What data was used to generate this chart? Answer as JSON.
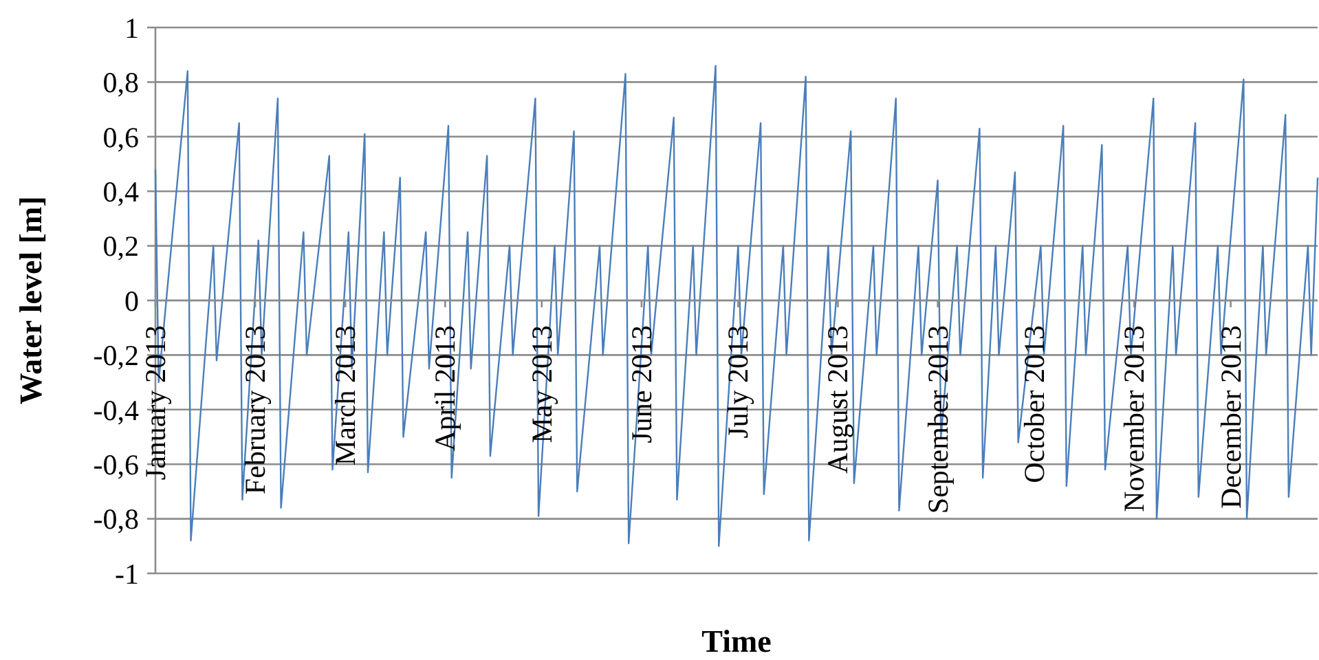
{
  "chart_data": {
    "type": "line",
    "xlabel": "Time",
    "ylabel": "Water level [m]",
    "grid": "y",
    "marker": "none",
    "line_style": "solid",
    "xlim": [
      "2013-01-01",
      "2013-12-28"
    ],
    "xticks": [
      {
        "value": "2013-01-01",
        "label": "January 2013"
      },
      {
        "value": "2013-02-01",
        "label": "February 2013"
      },
      {
        "value": "2013-03-01",
        "label": "March 2013"
      },
      {
        "value": "2013-04-01",
        "label": "April 2013"
      },
      {
        "value": "2013-05-01",
        "label": "May 2013"
      },
      {
        "value": "2013-06-01",
        "label": "June 2013"
      },
      {
        "value": "2013-07-01",
        "label": "July 2013"
      },
      {
        "value": "2013-08-01",
        "label": "August 2013"
      },
      {
        "value": "2013-09-01",
        "label": "September 2013"
      },
      {
        "value": "2013-10-01",
        "label": "October 2013"
      },
      {
        "value": "2013-11-01",
        "label": "November 2013"
      },
      {
        "value": "2013-12-01",
        "label": "December 2013"
      }
    ],
    "ylim": [
      -1,
      1
    ],
    "yticks": [
      -1,
      {
        "value": -0.8,
        "label": "-0,8"
      },
      {
        "value": -0.6,
        "label": "-0,6"
      },
      {
        "value": -0.4,
        "label": "-0,4"
      },
      {
        "value": -0.2,
        "label": "-0,2"
      },
      0,
      {
        "value": 0.2,
        "label": "0,2"
      },
      {
        "value": 0.4,
        "label": "0,4"
      },
      {
        "value": 0.6,
        "label": "0,6"
      },
      {
        "value": 0.8,
        "label": "0,8"
      },
      1
    ],
    "x": [
      "2013-01-01",
      "2013-01-02",
      "2013-01-11",
      "2013-01-12",
      "2013-01-19",
      "2013-01-20",
      "2013-01-27",
      "2013-01-28",
      "2013-02-02",
      "2013-02-03",
      "2013-02-08",
      "2013-02-09",
      "2013-02-16",
      "2013-02-17",
      "2013-02-24",
      "2013-02-25",
      "2013-03-02",
      "2013-03-03",
      "2013-03-07",
      "2013-03-08",
      "2013-03-13",
      "2013-03-14",
      "2013-03-18",
      "2013-03-19",
      "2013-03-26",
      "2013-03-27",
      "2013-04-02",
      "2013-04-03",
      "2013-04-08",
      "2013-04-09",
      "2013-04-14",
      "2013-04-15",
      "2013-04-21",
      "2013-04-22",
      "2013-04-29",
      "2013-04-30",
      "2013-05-05",
      "2013-05-06",
      "2013-05-11",
      "2013-05-12",
      "2013-05-19",
      "2013-05-20",
      "2013-05-27",
      "2013-05-28",
      "2013-06-03",
      "2013-06-04",
      "2013-06-11",
      "2013-06-12",
      "2013-06-17",
      "2013-06-18",
      "2013-06-24",
      "2013-06-25",
      "2013-07-01",
      "2013-07-02",
      "2013-07-08",
      "2013-07-09",
      "2013-07-15",
      "2013-07-16",
      "2013-07-22",
      "2013-07-23",
      "2013-07-29",
      "2013-07-30",
      "2013-08-05",
      "2013-08-06",
      "2013-08-12",
      "2013-08-13",
      "2013-08-19",
      "2013-08-20",
      "2013-08-26",
      "2013-08-27",
      "2013-09-01",
      "2013-09-02",
      "2013-09-07",
      "2013-09-08",
      "2013-09-14",
      "2013-09-15",
      "2013-09-19",
      "2013-09-20",
      "2013-09-25",
      "2013-09-26",
      "2013-10-03",
      "2013-10-04",
      "2013-10-10",
      "2013-10-11",
      "2013-10-16",
      "2013-10-17",
      "2013-10-22",
      "2013-10-23",
      "2013-10-30",
      "2013-10-31",
      "2013-11-07",
      "2013-11-08",
      "2013-11-13",
      "2013-11-14",
      "2013-11-20",
      "2013-11-21",
      "2013-11-27",
      "2013-11-28",
      "2013-12-05",
      "2013-12-06",
      "2013-12-11",
      "2013-12-12",
      "2013-12-18",
      "2013-12-19",
      "2013-12-25",
      "2013-12-26",
      "2013-12-28"
    ],
    "series": [
      {
        "color": "#4a7ebb",
        "values": [
          0.48,
          -0.3,
          0.84,
          -0.88,
          0.2,
          -0.22,
          0.65,
          -0.73,
          0.22,
          -0.2,
          0.74,
          -0.76,
          0.25,
          -0.2,
          0.53,
          -0.62,
          0.25,
          -0.25,
          0.61,
          -0.63,
          0.25,
          -0.2,
          0.45,
          -0.5,
          0.25,
          -0.25,
          0.64,
          -0.65,
          0.25,
          -0.25,
          0.53,
          -0.57,
          0.2,
          -0.2,
          0.74,
          -0.79,
          0.2,
          -0.2,
          0.62,
          -0.7,
          0.2,
          -0.2,
          0.83,
          -0.89,
          0.2,
          -0.2,
          0.67,
          -0.73,
          0.2,
          -0.2,
          0.86,
          -0.9,
          0.2,
          -0.2,
          0.65,
          -0.71,
          0.2,
          -0.2,
          0.82,
          -0.88,
          0.2,
          -0.2,
          0.62,
          -0.67,
          0.2,
          -0.2,
          0.74,
          -0.77,
          0.2,
          -0.2,
          0.44,
          -0.5,
          0.2,
          -0.2,
          0.63,
          -0.65,
          0.2,
          -0.2,
          0.47,
          -0.52,
          0.2,
          -0.2,
          0.64,
          -0.68,
          0.2,
          -0.2,
          0.57,
          -0.62,
          0.2,
          -0.2,
          0.74,
          -0.8,
          0.2,
          -0.2,
          0.65,
          -0.72,
          0.2,
          -0.2,
          0.81,
          -0.8,
          0.2,
          -0.2,
          0.68,
          -0.72,
          0.2,
          -0.2,
          0.45
        ]
      }
    ]
  }
}
